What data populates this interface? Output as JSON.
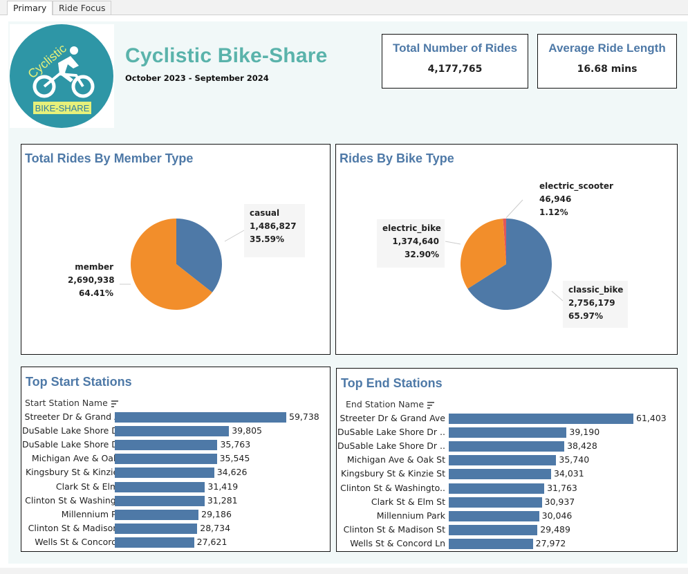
{
  "tabs": [
    {
      "label": "Primary",
      "active": true
    },
    {
      "label": "Ride Focus",
      "active": false
    }
  ],
  "logo": {
    "top_text": "Cyclistic",
    "bottom_text": "BIKE-SHARE",
    "bg_color": "#2e96a6",
    "accent_color": "#e6f07a"
  },
  "header": {
    "title": "Cyclistic Bike-Share",
    "subtitle": "October 2023 - September 2024"
  },
  "kpis": [
    {
      "label": "Total Number of Rides",
      "value": "4,177,765"
    },
    {
      "label": "Average Ride Length",
      "value": "16.68 mins"
    }
  ],
  "colors": {
    "blue": "#4e79a7",
    "orange": "#f28e2b",
    "red": "#e15759",
    "title_teal": "#5ab3ab"
  },
  "member_chart": {
    "title": "Total Rides By Member Type",
    "slices": [
      {
        "name": "casual",
        "value": "1,486,827",
        "pct": "35.59%",
        "pct_num": 35.59,
        "color": "#4e79a7"
      },
      {
        "name": "member",
        "value": "2,690,938",
        "pct": "64.41%",
        "pct_num": 64.41,
        "color": "#f28e2b"
      }
    ]
  },
  "bike_chart": {
    "title": "Rides By Bike Type",
    "slices": [
      {
        "name": "electric_scooter",
        "value": "46,946",
        "pct": "1.12%",
        "pct_num": 1.12,
        "color": "#e15759"
      },
      {
        "name": "classic_bike",
        "value": "2,756,179",
        "pct": "65.97%",
        "pct_num": 65.97,
        "color": "#4e79a7"
      },
      {
        "name": "electric_bike",
        "value": "1,374,640",
        "pct": "32.90%",
        "pct_num": 32.9,
        "color": "#f28e2b"
      }
    ]
  },
  "start_stations": {
    "title": "Top Start Stations",
    "header": "Start Station Name",
    "sort_icon": "sort-descending-icon",
    "max": 59738,
    "rows": [
      {
        "name": "Streeter Dr & Grand Ave",
        "value": 59738,
        "label": "59,738"
      },
      {
        "name": "DuSable Lake Shore Dr ..",
        "value": 39805,
        "label": "39,805"
      },
      {
        "name": "DuSable Lake Shore Dr ..",
        "value": 35763,
        "label": "35,763"
      },
      {
        "name": "Michigan Ave & Oak St",
        "value": 35545,
        "label": "35,545"
      },
      {
        "name": "Kingsbury St & Kinzie St",
        "value": 34626,
        "label": "34,626"
      },
      {
        "name": "Clark St & Elm St",
        "value": 31419,
        "label": "31,419"
      },
      {
        "name": "Clinton St & Washingto..",
        "value": 31281,
        "label": "31,281"
      },
      {
        "name": "Millennium Park",
        "value": 29186,
        "label": "29,186"
      },
      {
        "name": "Clinton St & Madison St",
        "value": 28734,
        "label": "28,734"
      },
      {
        "name": "Wells St & Concord Ln",
        "value": 27621,
        "label": "27,621"
      }
    ]
  },
  "end_stations": {
    "title": "Top End Stations",
    "header": "End Station Name",
    "sort_icon": "sort-descending-icon",
    "max": 61403,
    "rows": [
      {
        "name": "Streeter Dr & Grand Ave",
        "value": 61403,
        "label": "61,403"
      },
      {
        "name": "DuSable Lake Shore Dr ..",
        "value": 39190,
        "label": "39,190"
      },
      {
        "name": "DuSable Lake Shore Dr ..",
        "value": 38428,
        "label": "38,428"
      },
      {
        "name": "Michigan Ave & Oak St",
        "value": 35740,
        "label": "35,740"
      },
      {
        "name": "Kingsbury St & Kinzie St",
        "value": 34031,
        "label": "34,031"
      },
      {
        "name": "Clinton St & Washingto..",
        "value": 31763,
        "label": "31,763"
      },
      {
        "name": "Clark St & Elm St",
        "value": 30937,
        "label": "30,937"
      },
      {
        "name": "Millennium Park",
        "value": 30046,
        "label": "30,046"
      },
      {
        "name": "Clinton St & Madison St",
        "value": 29489,
        "label": "29,489"
      },
      {
        "name": "Wells St & Concord Ln",
        "value": 27972,
        "label": "27,972"
      }
    ]
  },
  "chart_data": [
    {
      "type": "pie",
      "title": "Total Rides By Member Type",
      "categories": [
        "casual",
        "member"
      ],
      "values": [
        1486827,
        2690938
      ],
      "percentages": [
        35.59,
        64.41
      ]
    },
    {
      "type": "pie",
      "title": "Rides By Bike Type",
      "categories": [
        "electric_scooter",
        "classic_bike",
        "electric_bike"
      ],
      "values": [
        46946,
        2756179,
        1374640
      ],
      "percentages": [
        1.12,
        65.97,
        32.9
      ]
    },
    {
      "type": "bar",
      "title": "Top Start Stations",
      "xlabel": "",
      "ylabel": "Start Station Name",
      "categories": [
        "Streeter Dr & Grand Ave",
        "DuSable Lake Shore Dr ..",
        "DuSable Lake Shore Dr ..",
        "Michigan Ave & Oak St",
        "Kingsbury St & Kinzie St",
        "Clark St & Elm St",
        "Clinton St & Washingto..",
        "Millennium Park",
        "Clinton St & Madison St",
        "Wells St & Concord Ln"
      ],
      "values": [
        59738,
        39805,
        35763,
        35545,
        34626,
        31419,
        31281,
        29186,
        28734,
        27621
      ]
    },
    {
      "type": "bar",
      "title": "Top End Stations",
      "xlabel": "",
      "ylabel": "End Station Name",
      "categories": [
        "Streeter Dr & Grand Ave",
        "DuSable Lake Shore Dr ..",
        "DuSable Lake Shore Dr ..",
        "Michigan Ave & Oak St",
        "Kingsbury St & Kinzie St",
        "Clinton St & Washingto..",
        "Clark St & Elm St",
        "Millennium Park",
        "Clinton St & Madison St",
        "Wells St & Concord Ln"
      ],
      "values": [
        61403,
        39190,
        38428,
        35740,
        34031,
        31763,
        30937,
        30046,
        29489,
        27972
      ]
    }
  ]
}
